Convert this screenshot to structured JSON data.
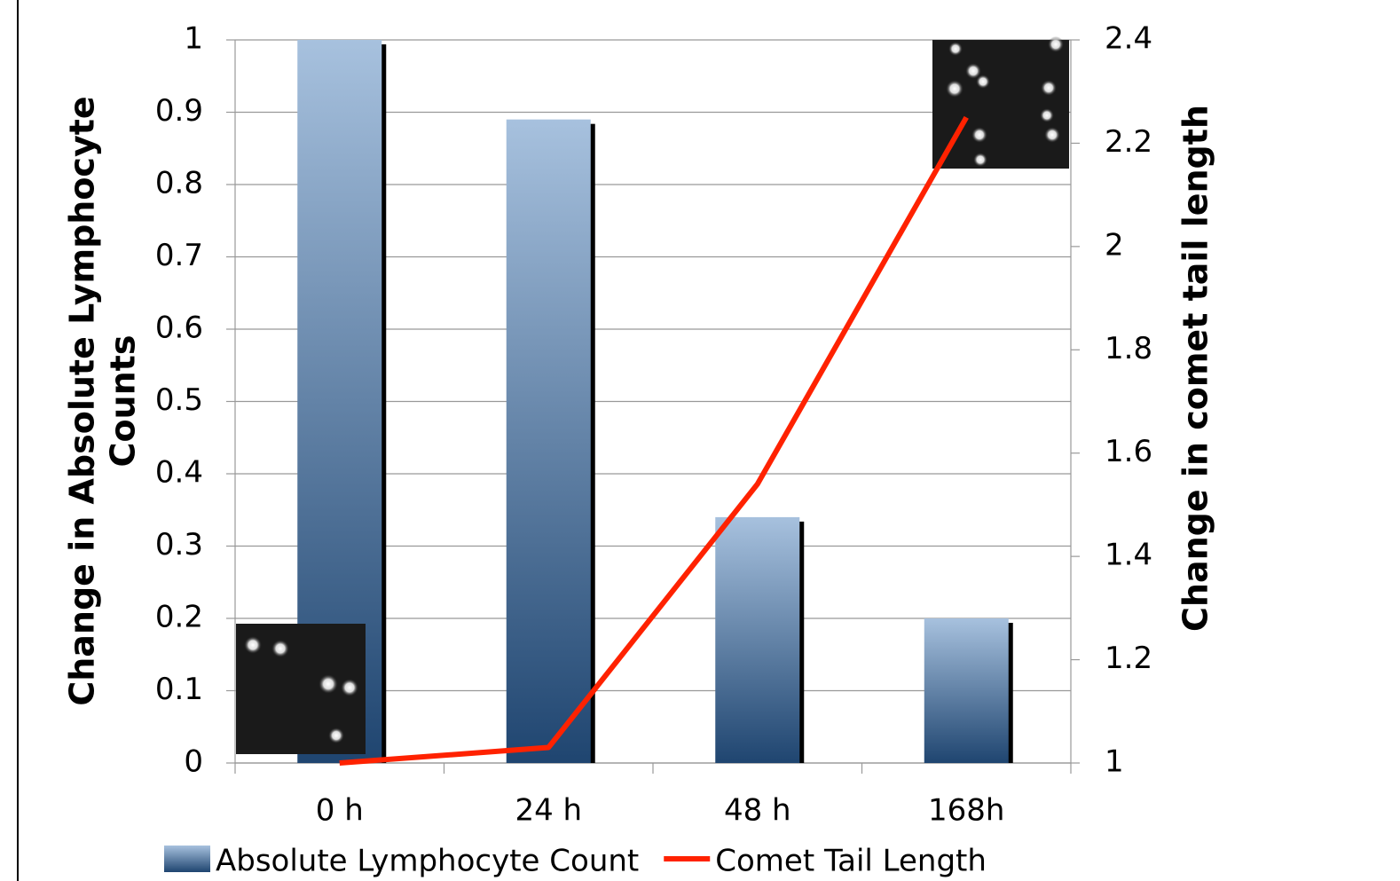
{
  "chart_data": {
    "type": "bar",
    "categories": [
      "0 h",
      "24 h",
      "48 h",
      "168h"
    ],
    "series": [
      {
        "name": "Absolute Lymphocyte Count",
        "type": "bar",
        "color": "#2c4f7c",
        "values": [
          1,
          0.89,
          0.34,
          0.2
        ]
      },
      {
        "name": "Comet Tail Length",
        "type": "line",
        "axis": "y2",
        "color": "#ff2200",
        "values": [
          1,
          1.03,
          1.54,
          2.25
        ]
      }
    ],
    "ylabel": [
      "Change in Absolute Lymphocyte",
      "Counts"
    ],
    "y2label": "Change in comet tail length",
    "ylim": [
      0,
      1
    ],
    "yticks": [
      0,
      0.1,
      0.2,
      0.3,
      0.4,
      0.5,
      0.6,
      0.7,
      0.8,
      0.9,
      1
    ],
    "y2lim": [
      1,
      2.4
    ],
    "y2ticks": [
      1,
      1.2,
      1.4,
      1.6,
      1.8,
      2,
      2.2,
      2.4
    ],
    "grid": true
  }
}
